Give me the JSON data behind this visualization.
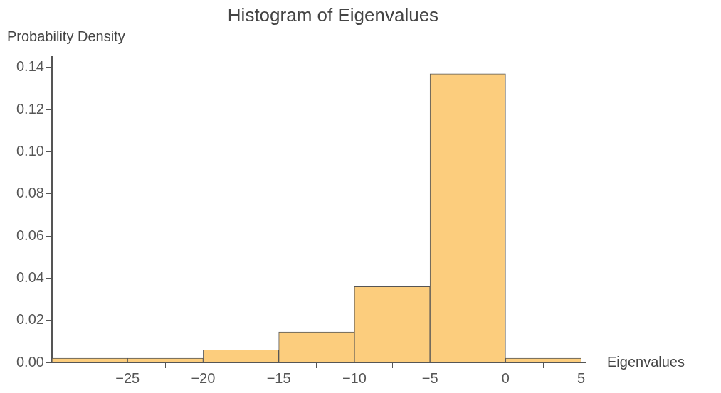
{
  "chart_data": {
    "type": "histogram",
    "title": "Histogram of Eigenvalues",
    "xlabel": "Eigenvalues",
    "ylabel": "Probability Density",
    "bins": [
      -30,
      -25,
      -20,
      -15,
      -10,
      -5,
      0,
      5
    ],
    "values": [
      0.002,
      0.002,
      0.006,
      0.0145,
      0.036,
      0.137,
      0.002
    ],
    "color": "#fccd7d",
    "xlim": [
      -30,
      5.3
    ],
    "xticks": [
      -25,
      -20,
      -15,
      -10,
      -5,
      0,
      5
    ],
    "ylim": [
      0,
      0.145
    ],
    "yticks": [
      {
        "value": 0,
        "label": "0.00"
      },
      {
        "value": 0.02,
        "label": "0.02"
      },
      {
        "value": 0.04,
        "label": "0.04"
      },
      {
        "value": 0.06,
        "label": "0.06"
      },
      {
        "value": 0.08,
        "label": "0.08"
      },
      {
        "value": 0.1,
        "label": "0.10"
      },
      {
        "value": 0.12,
        "label": "0.12"
      },
      {
        "value": 0.14,
        "label": "0.14"
      }
    ],
    "grid": false,
    "legend": false
  }
}
